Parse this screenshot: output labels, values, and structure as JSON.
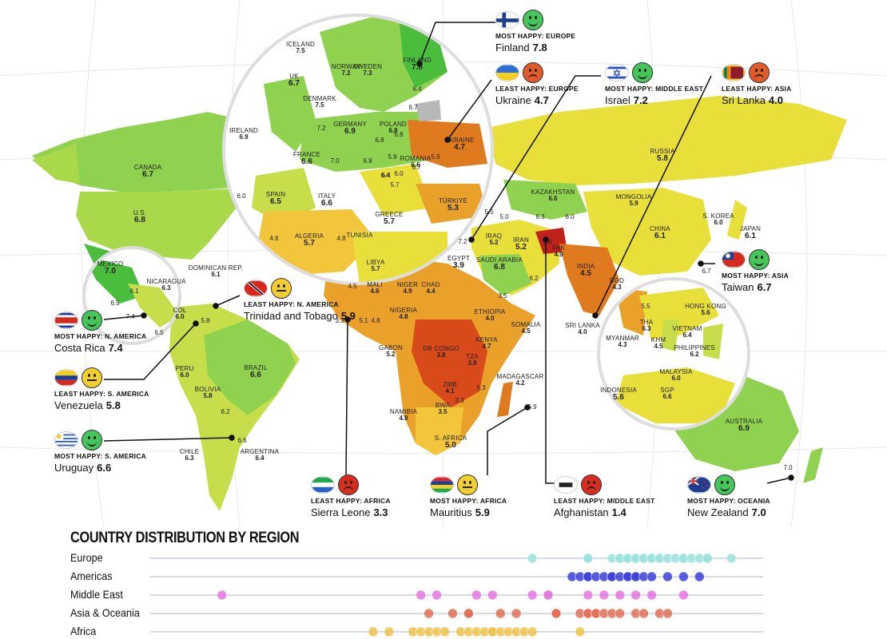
{
  "colors": {
    "ocean": "#ffffff",
    "grid": "#e6e6e6",
    "no_data": "#b8b8b8",
    "scale": [
      "#c0211b",
      "#d84a1a",
      "#e07a1f",
      "#eaa12a",
      "#f2c53a",
      "#e9df3a",
      "#c7dd4a",
      "#8fd250",
      "#4bbd3c"
    ],
    "europe": "#9be3dd",
    "americas": "#3a3fdc",
    "middle_east": "#e676e2",
    "asia_oceania": "#e26e55",
    "africa": "#efc24a",
    "lines": "#111111"
  },
  "map_labels": [
    {
      "name": "ICELAND",
      "score": "7.5",
      "sm": true
    },
    {
      "name": "NORWAY",
      "score": "7.2",
      "sm": true
    },
    {
      "name": "SWEDEN",
      "score": "7.3",
      "sm": true
    },
    {
      "name": "FINLAND",
      "score": "7.8"
    },
    {
      "name": "UK",
      "score": "6.7"
    },
    {
      "name": "DENMARK",
      "score": "7.5",
      "sm": true
    },
    {
      "name": "IRELAND",
      "score": "6.9",
      "sm": true
    },
    {
      "name": "GERMANY",
      "score": "6.9"
    },
    {
      "name": "POLAND",
      "score": "6.8",
      "sm": true
    },
    {
      "name": "FRANCE",
      "score": "6.6"
    },
    {
      "name": "UKRAINE",
      "score": "4.7"
    },
    {
      "name": "ROMANIA",
      "score": "6.6",
      "sm": true
    },
    {
      "name": "SPAIN",
      "score": "6.5"
    },
    {
      "name": "ITALY",
      "score": "6.6"
    },
    {
      "name": "GREECE",
      "score": "5.7"
    },
    {
      "name": "ALGERIA",
      "score": "5.7"
    },
    {
      "name": "TUNISIA",
      "score": "",
      "sm": true
    },
    {
      "name": "LIBYA",
      "score": "5.7",
      "sm": true
    },
    {
      "name": "TÜRKIYE",
      "score": "5.3"
    },
    {
      "name": "CANADA",
      "score": "6.7"
    },
    {
      "name": "U.S.",
      "score": "6.8"
    },
    {
      "name": "MEXICO",
      "score": "7.0"
    },
    {
      "name": "NICARAGUA",
      "score": "6.3",
      "sm": true
    },
    {
      "name": "DOMINICAN REP.",
      "score": "6.1",
      "sm": true
    },
    {
      "name": "COL",
      "score": "6.0",
      "sm": true
    },
    {
      "name": "PERU",
      "score": "6.0",
      "sm": true
    },
    {
      "name": "BOLIVIA",
      "score": "5.8",
      "sm": true
    },
    {
      "name": "BRAZIL",
      "score": "6.6"
    },
    {
      "name": "CHILE",
      "score": "6.3",
      "sm": true
    },
    {
      "name": "ARGENTINA",
      "score": "6.4",
      "sm": true
    },
    {
      "name": "EGYPT",
      "score": "3.9"
    },
    {
      "name": "IRAQ",
      "score": "5.2",
      "sm": true
    },
    {
      "name": "IRAN",
      "score": "5.2"
    },
    {
      "name": "SAUDI ARABIA",
      "score": "6.8"
    },
    {
      "name": "PAK",
      "score": "4.9",
      "sm": true
    },
    {
      "name": "INDIA",
      "score": "4.5"
    },
    {
      "name": "KAZAKHSTAN",
      "score": "6.6",
      "sm": true
    },
    {
      "name": "RUSSIA",
      "score": "5.8"
    },
    {
      "name": "MONGOLIA",
      "score": "5.9",
      "sm": true
    },
    {
      "name": "CHINA",
      "score": "6.1"
    },
    {
      "name": "S. KOREA",
      "score": "6.0",
      "sm": true
    },
    {
      "name": "JAPAN",
      "score": "6.1"
    },
    {
      "name": "MALI",
      "score": "4.6",
      "sm": true
    },
    {
      "name": "NIGER",
      "score": "4.9",
      "sm": true
    },
    {
      "name": "CHAD",
      "score": "4.4",
      "sm": true
    },
    {
      "name": "NIGERIA",
      "score": "4.8",
      "sm": true
    },
    {
      "name": "ETHIOPIA",
      "score": "4.0",
      "sm": true
    },
    {
      "name": "SOMALIA",
      "score": "4.5",
      "sm": true
    },
    {
      "name": "KENYA",
      "score": "4.7",
      "sm": true
    },
    {
      "name": "GABON",
      "score": "5.2",
      "sm": true
    },
    {
      "name": "DR CONGO",
      "score": "3.8",
      "sm": true
    },
    {
      "name": "TZA",
      "score": "3.9",
      "sm": true
    },
    {
      "name": "ZMB",
      "score": "4.1",
      "sm": true
    },
    {
      "name": "NAMIBIA",
      "score": "4.8",
      "sm": true
    },
    {
      "name": "BWA",
      "score": "3.5",
      "sm": true
    },
    {
      "name": "S. AFRICA",
      "score": "5.0"
    },
    {
      "name": "MADAGASCAR",
      "score": "4.2",
      "sm": true
    },
    {
      "name": "BGD",
      "score": "4.3",
      "sm": true
    },
    {
      "name": "SRI LANKA",
      "score": "4.0",
      "sm": true
    },
    {
      "name": "MYANMAR",
      "score": "4.3",
      "sm": true
    },
    {
      "name": "THA",
      "score": "6.3",
      "sm": true
    },
    {
      "name": "KHM",
      "score": "4.5",
      "sm": true
    },
    {
      "name": "HONG KONG",
      "score": "5.6",
      "sm": true
    },
    {
      "name": "VIETNAM",
      "score": "6.4",
      "sm": true
    },
    {
      "name": "PHILIPPINES",
      "score": "6.2",
      "sm": true
    },
    {
      "name": "MALAYSIA",
      "score": "6.0",
      "sm": true
    },
    {
      "name": "SGP",
      "score": "6.6",
      "sm": true
    },
    {
      "name": "INDONESIA",
      "score": "5.6"
    },
    {
      "name": "AUSTRALIA",
      "score": "6.9"
    }
  ],
  "map_numbers": [
    "6.4",
    "7.2",
    "6.4",
    "6.7",
    "6.8",
    "6.8",
    "6.9",
    "5.9",
    "5.9",
    "6.0",
    "6.4",
    "6.7",
    "7.0",
    "5.7",
    "6.0",
    "4.6",
    "4.8",
    "7.2",
    "5.5",
    "5.0",
    "6.3",
    "6.0",
    "6.2",
    "3.5",
    "1.4",
    "4.5",
    "5.1",
    "4.8",
    "3.3",
    "3.3",
    "5.3",
    "6.1",
    "6.5",
    "7.4",
    "6.5",
    "6.2",
    "6.6",
    "5.8",
    "6.7",
    "5.5",
    "7.0",
    "5.9"
  ],
  "callouts": [
    {
      "tag": "MOST HAPPY: EUROPE",
      "country": "Finland",
      "score": "7.8",
      "flag": "finland",
      "face": "happy"
    },
    {
      "tag": "LEAST HAPPY: EUROPE",
      "country": "Ukraine",
      "score": "4.7",
      "flag": "ukraine",
      "face": "sad"
    },
    {
      "tag": "MOST HAPPY: MIDDLE EAST",
      "country": "Israel",
      "score": "7.2",
      "flag": "israel",
      "face": "happy"
    },
    {
      "tag": "LEAST HAPPY: ASIA",
      "country": "Sri Lanka",
      "score": "4.0",
      "flag": "sri-lanka",
      "face": "sad"
    },
    {
      "tag": "MOST HAPPY: ASIA",
      "country": "Taiwan",
      "score": "6.7",
      "flag": "taiwan",
      "face": "happy"
    },
    {
      "tag": "LEAST HAPPY: N. AMERICA",
      "country": "Trinidad and Tobago",
      "score": "5.9",
      "flag": "trinidad",
      "face": "neutral"
    },
    {
      "tag": "MOST HAPPY: N. AMERICA",
      "country": "Costa Rica",
      "score": "7.4",
      "flag": "costa-rica",
      "face": "happy"
    },
    {
      "tag": "LEAST HAPPY: S. AMERICA",
      "country": "Venezuela",
      "score": "5.8",
      "flag": "venezuela",
      "face": "neutral"
    },
    {
      "tag": "MOST HAPPY: S. AMERICA",
      "country": "Uruguay",
      "score": "6.6",
      "flag": "uruguay",
      "face": "happy"
    },
    {
      "tag": "LEAST HAPPY: AFRICA",
      "country": "Sierra Leone",
      "score": "3.3",
      "flag": "sierra-leone",
      "face": "angry"
    },
    {
      "tag": "MOST HAPPY: AFRICA",
      "country": "Mauritius",
      "score": "5.9",
      "flag": "mauritius",
      "face": "neutral"
    },
    {
      "tag": "LEAST HAPPY: MIDDLE EAST",
      "country": "Afghanistan",
      "score": "1.4",
      "flag": "afghanistan",
      "face": "angry"
    },
    {
      "tag": "MOST HAPPY: OCEANIA",
      "country": "New Zealand",
      "score": "7.0",
      "flag": "new-zealand",
      "face": "happy"
    }
  ],
  "distribution": {
    "title": "COUNTRY DISTRIBUTION BY REGION",
    "rows": [
      {
        "label": "Europe",
        "color_key": "europe",
        "values": [
          5.3,
          6.0,
          6.0,
          6.3,
          6.4,
          6.4,
          6.5,
          6.5,
          6.6,
          6.6,
          6.7,
          6.7,
          6.8,
          6.8,
          6.9,
          6.9,
          7.0,
          7.1,
          7.2,
          7.2,
          7.3,
          7.4,
          7.5,
          7.5,
          7.8
        ]
      },
      {
        "label": "Americas",
        "color_key": "americas",
        "values": [
          5.8,
          5.9,
          6.0,
          6.0,
          6.1,
          6.2,
          6.3,
          6.3,
          6.4,
          6.5,
          6.5,
          6.6,
          6.6,
          6.7,
          6.8,
          7.0,
          7.2,
          7.4
        ]
      },
      {
        "label": "Middle East",
        "color_key": "middle_east",
        "values": [
          1.4,
          3.9,
          4.1,
          4.6,
          4.8,
          5.3,
          5.5,
          5.5,
          6.0,
          6.2,
          6.4,
          6.6,
          6.8,
          7.2
        ]
      },
      {
        "label": "Asia & Oceania",
        "color_key": "asia_oceania",
        "values": [
          4.0,
          4.3,
          4.5,
          4.5,
          4.9,
          5.1,
          5.6,
          5.6,
          5.9,
          6.0,
          6.0,
          6.1,
          6.1,
          6.2,
          6.3,
          6.4,
          6.6,
          6.7,
          6.9,
          7.0
        ]
      },
      {
        "label": "Africa",
        "color_key": "africa",
        "values": [
          3.3,
          3.5,
          3.8,
          3.9,
          4.0,
          4.1,
          4.2,
          4.4,
          4.5,
          4.6,
          4.7,
          4.8,
          4.8,
          4.9,
          5.0,
          5.1,
          5.2,
          5.3,
          5.9
        ]
      }
    ]
  }
}
